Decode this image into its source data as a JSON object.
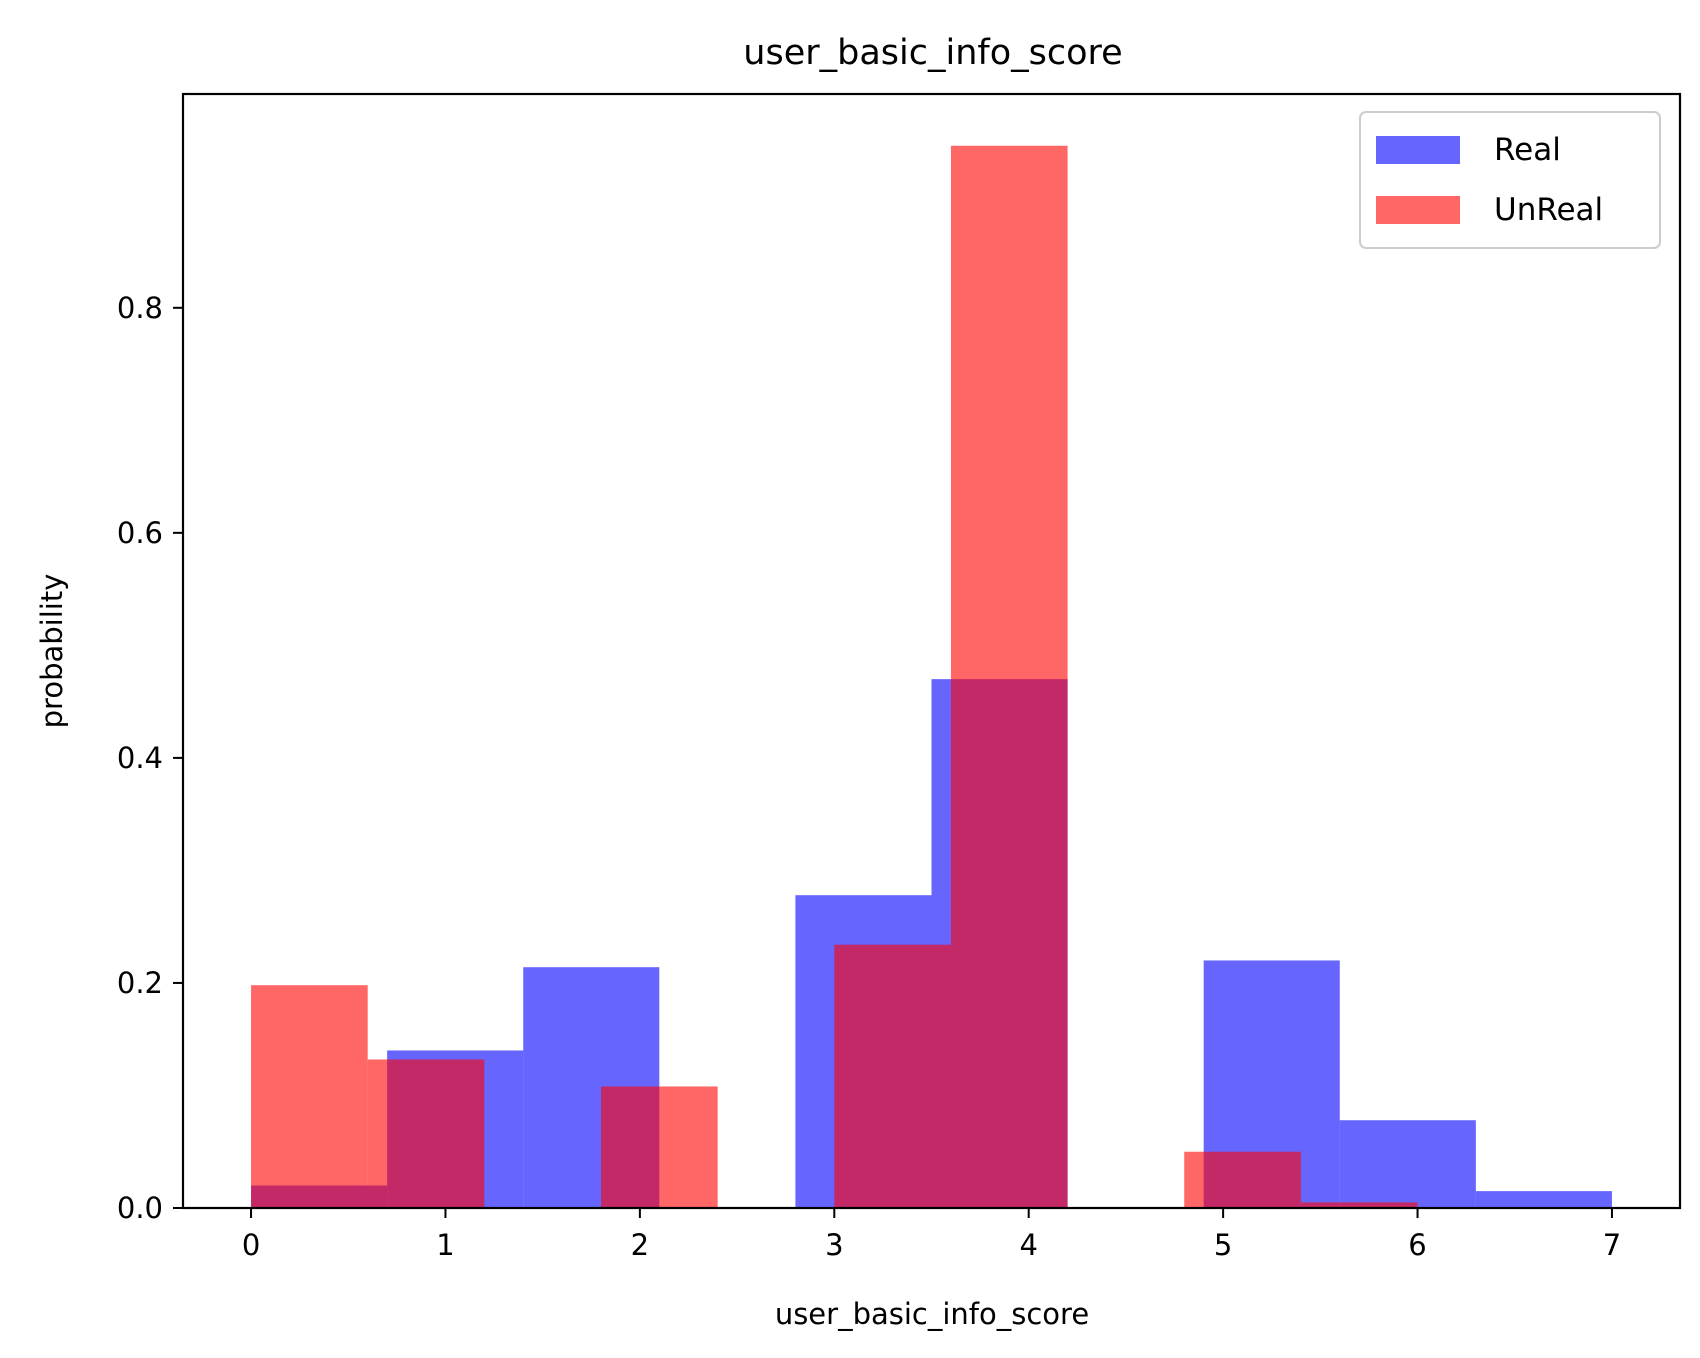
{
  "chart_data": {
    "type": "bar",
    "title": "user_basic_info_score",
    "xlabel": "user_basic_info_score",
    "ylabel": "probability",
    "xlim": [
      -0.35,
      7.35
    ],
    "ylim": [
      0,
      0.99
    ],
    "x_ticks": [
      0,
      1,
      2,
      3,
      4,
      5,
      6,
      7
    ],
    "x_tick_labels": [
      "0",
      "1",
      "2",
      "3",
      "4",
      "5",
      "6",
      "7"
    ],
    "y_ticks": [
      0.0,
      0.2,
      0.4,
      0.6,
      0.8
    ],
    "y_tick_labels": [
      "0.0",
      "0.2",
      "0.4",
      "0.6",
      "0.8"
    ],
    "grid": false,
    "legend_position": "top-right",
    "series": [
      {
        "name": "Real",
        "color": "#0000ff",
        "opacity": 0.6,
        "bins": [
          {
            "x0": 0.0,
            "x1": 0.7,
            "value": 0.02
          },
          {
            "x0": 0.7,
            "x1": 1.4,
            "value": 0.14
          },
          {
            "x0": 1.4,
            "x1": 2.1,
            "value": 0.214
          },
          {
            "x0": 2.1,
            "x1": 2.8,
            "value": 0.0
          },
          {
            "x0": 2.8,
            "x1": 3.5,
            "value": 0.278
          },
          {
            "x0": 3.5,
            "x1": 4.2,
            "value": 0.47
          },
          {
            "x0": 4.2,
            "x1": 4.9,
            "value": 0.0
          },
          {
            "x0": 4.9,
            "x1": 5.6,
            "value": 0.22
          },
          {
            "x0": 5.6,
            "x1": 6.3,
            "value": 0.078
          },
          {
            "x0": 6.3,
            "x1": 7.0,
            "value": 0.015
          }
        ]
      },
      {
        "name": "UnReal",
        "color": "#ff0000",
        "opacity": 0.6,
        "bins": [
          {
            "x0": 0.0,
            "x1": 0.6,
            "value": 0.198
          },
          {
            "x0": 0.6,
            "x1": 1.2,
            "value": 0.132
          },
          {
            "x0": 1.2,
            "x1": 1.8,
            "value": 0.0
          },
          {
            "x0": 1.8,
            "x1": 2.4,
            "value": 0.108
          },
          {
            "x0": 2.4,
            "x1": 3.0,
            "value": 0.0
          },
          {
            "x0": 3.0,
            "x1": 3.6,
            "value": 0.234
          },
          {
            "x0": 3.6,
            "x1": 4.2,
            "value": 0.944
          },
          {
            "x0": 4.2,
            "x1": 4.8,
            "value": 0.0
          },
          {
            "x0": 4.8,
            "x1": 5.4,
            "value": 0.05
          },
          {
            "x0": 5.4,
            "x1": 6.0,
            "value": 0.005
          }
        ]
      }
    ]
  }
}
